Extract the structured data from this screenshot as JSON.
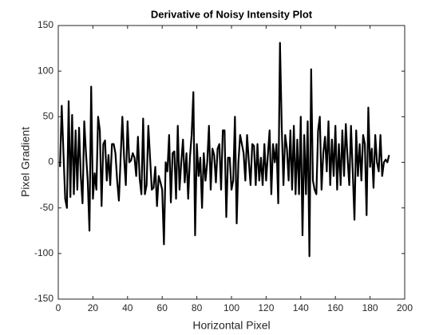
{
  "chart_data": {
    "type": "line",
    "title": "Derivative of Noisy Intensity Plot",
    "x_label": "Horizontal Pixel",
    "y_label": "Pixel Gradient",
    "x": [
      1,
      2,
      3,
      4,
      5,
      6,
      7,
      8,
      9,
      10,
      11,
      12,
      13,
      14,
      15,
      16,
      17,
      18,
      19,
      20,
      21,
      22,
      23,
      24,
      25,
      26,
      27,
      28,
      29,
      30,
      31,
      32,
      33,
      34,
      35,
      36,
      37,
      38,
      39,
      40,
      41,
      42,
      43,
      44,
      45,
      46,
      47,
      48,
      49,
      50,
      51,
      52,
      53,
      54,
      55,
      56,
      57,
      58,
      59,
      60,
      61,
      62,
      63,
      64,
      65,
      66,
      67,
      68,
      69,
      70,
      71,
      72,
      73,
      74,
      75,
      76,
      77,
      78,
      79,
      80,
      81,
      82,
      83,
      84,
      85,
      86,
      87,
      88,
      89,
      90,
      91,
      92,
      93,
      94,
      95,
      96,
      97,
      98,
      99,
      100,
      101,
      102,
      103,
      104,
      105,
      106,
      107,
      108,
      109,
      110,
      111,
      112,
      113,
      114,
      115,
      116,
      117,
      118,
      119,
      120,
      121,
      122,
      123,
      124,
      125,
      126,
      127,
      128,
      129,
      130,
      131,
      132,
      133,
      134,
      135,
      136,
      137,
      138,
      139,
      140,
      141,
      142,
      143,
      144,
      145,
      146,
      147,
      148,
      149,
      150,
      151,
      152,
      153,
      154,
      155,
      156,
      157,
      158,
      159,
      160,
      161,
      162,
      163,
      164,
      165,
      166,
      167,
      168,
      169,
      170,
      171,
      172,
      173,
      174,
      175,
      176,
      177,
      178,
      179,
      180,
      181,
      182,
      183,
      184,
      185,
      186,
      187,
      188,
      189,
      190,
      191
    ],
    "series": [
      {
        "color": "#000000",
        "values": [
          -5,
          62,
          10,
          -40,
          -50,
          67,
          -38,
          52,
          -35,
          35,
          -30,
          38,
          -15,
          -45,
          45,
          10,
          -20,
          -75,
          83,
          -40,
          -12,
          -30,
          50,
          35,
          -48,
          20,
          24,
          -20,
          8,
          -25,
          20,
          20,
          10,
          -20,
          -42,
          5,
          50,
          5,
          -25,
          45,
          0,
          2,
          10,
          5,
          -15,
          28,
          -18,
          -35,
          48,
          -35,
          -25,
          40,
          5,
          -30,
          -28,
          -5,
          -48,
          -15,
          -22,
          -30,
          -90,
          0,
          -10,
          30,
          -44,
          10,
          12,
          -40,
          40,
          -30,
          0,
          25,
          -22,
          10,
          -40,
          5,
          30,
          77,
          -80,
          20,
          -15,
          5,
          -50,
          10,
          -20,
          0,
          40,
          -30,
          15,
          8,
          -22,
          15,
          20,
          -30,
          35,
          35,
          -60,
          5,
          5,
          -30,
          -20,
          50,
          -67,
          0,
          30,
          20,
          10,
          -20,
          30,
          2,
          -25,
          20,
          18,
          -25,
          20,
          -20,
          5,
          -25,
          20,
          -20,
          8,
          35,
          -35,
          20,
          0,
          20,
          -45,
          131,
          40,
          -25,
          30,
          15,
          -20,
          35,
          -30,
          40,
          -35,
          25,
          -35,
          50,
          -80,
          30,
          -35,
          45,
          -103,
          102,
          -20,
          -30,
          -35,
          35,
          50,
          -30,
          10,
          28,
          -10,
          45,
          -25,
          25,
          -15,
          40,
          -30,
          20,
          -25,
          35,
          -15,
          42,
          5,
          -25,
          40,
          -10,
          -63,
          35,
          -15,
          20,
          -20,
          30,
          20,
          -58,
          60,
          -5,
          15,
          -28,
          30,
          0,
          -10,
          30,
          -15,
          0,
          3,
          0,
          8
        ]
      }
    ],
    "xlim": [
      0,
      200
    ],
    "xticks": [
      0,
      20,
      40,
      60,
      80,
      100,
      120,
      140,
      160,
      180,
      200
    ],
    "ylim": [
      -150,
      150
    ],
    "yticks": [
      -150,
      -100,
      -50,
      0,
      50,
      100,
      150
    ]
  }
}
